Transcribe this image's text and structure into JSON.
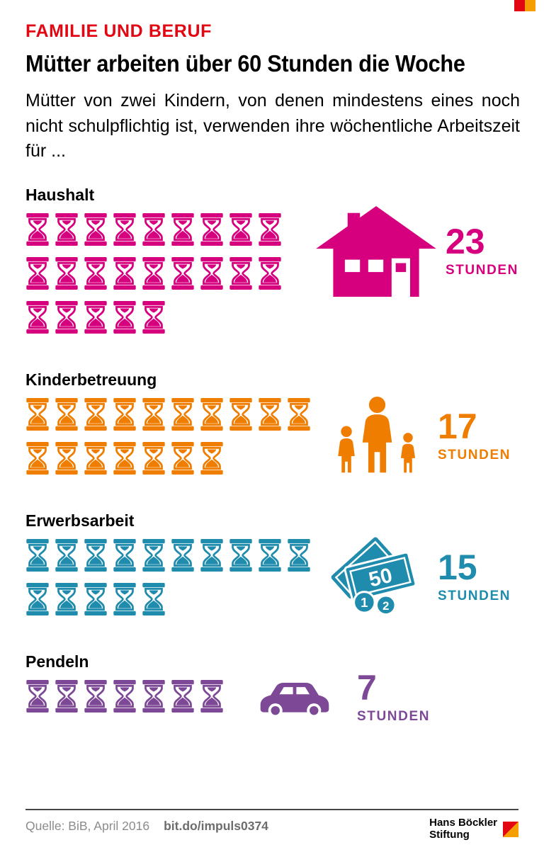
{
  "header": {
    "kicker": "FAMILIE UND BERUF",
    "title": "Mütter arbeiten über 60 Stunden die Woche",
    "intro": "Mütter von zwei Kindern, von denen mindestens eines noch nicht schulpflichtig ist, verwenden ihre wöchentliche Arbeitszeit für ..."
  },
  "chart_data": {
    "type": "pictogram",
    "title": "Mütter arbeiten über 60 Stunden die Woche",
    "categories": [
      "Haushalt",
      "Kinderbetreuung",
      "Erwerbsarbeit",
      "Pendeln"
    ],
    "values": [
      23,
      17,
      15,
      7
    ],
    "icon_glyph": "hourglass",
    "icons_per_row": 10,
    "series": [
      {
        "label": "Haushalt",
        "value": 23,
        "unit_label": "STUNDEN",
        "color": "#d6007f",
        "icon": "house-icon"
      },
      {
        "label": "Kinderbetreuung",
        "value": 17,
        "unit_label": "STUNDEN",
        "color": "#ef7d00",
        "icon": "family-icon"
      },
      {
        "label": "Erwerbsarbeit",
        "value": 15,
        "unit_label": "STUNDEN",
        "color": "#1f8cad",
        "icon": "money-icon"
      },
      {
        "label": "Pendeln",
        "value": 7,
        "unit_label": "STUNDEN",
        "color": "#7d4996",
        "icon": "car-icon"
      }
    ]
  },
  "icons": {
    "money": {
      "note_label": "50",
      "coin1": "1",
      "coin2": "2"
    }
  },
  "footer": {
    "source": "Quelle: BiB, April 2016",
    "link": "bit.do/impuls0374",
    "logo_line1": "Hans Böckler",
    "logo_line2": "Stiftung"
  },
  "colors": {
    "accent_red": "#e30613",
    "pink": "#d6007f",
    "orange": "#ef7d00",
    "teal": "#1f8cad",
    "purple": "#7d4996",
    "logo_red": "#e30613",
    "logo_orange": "#f59e00",
    "footer_text": "#8c8c8c"
  }
}
